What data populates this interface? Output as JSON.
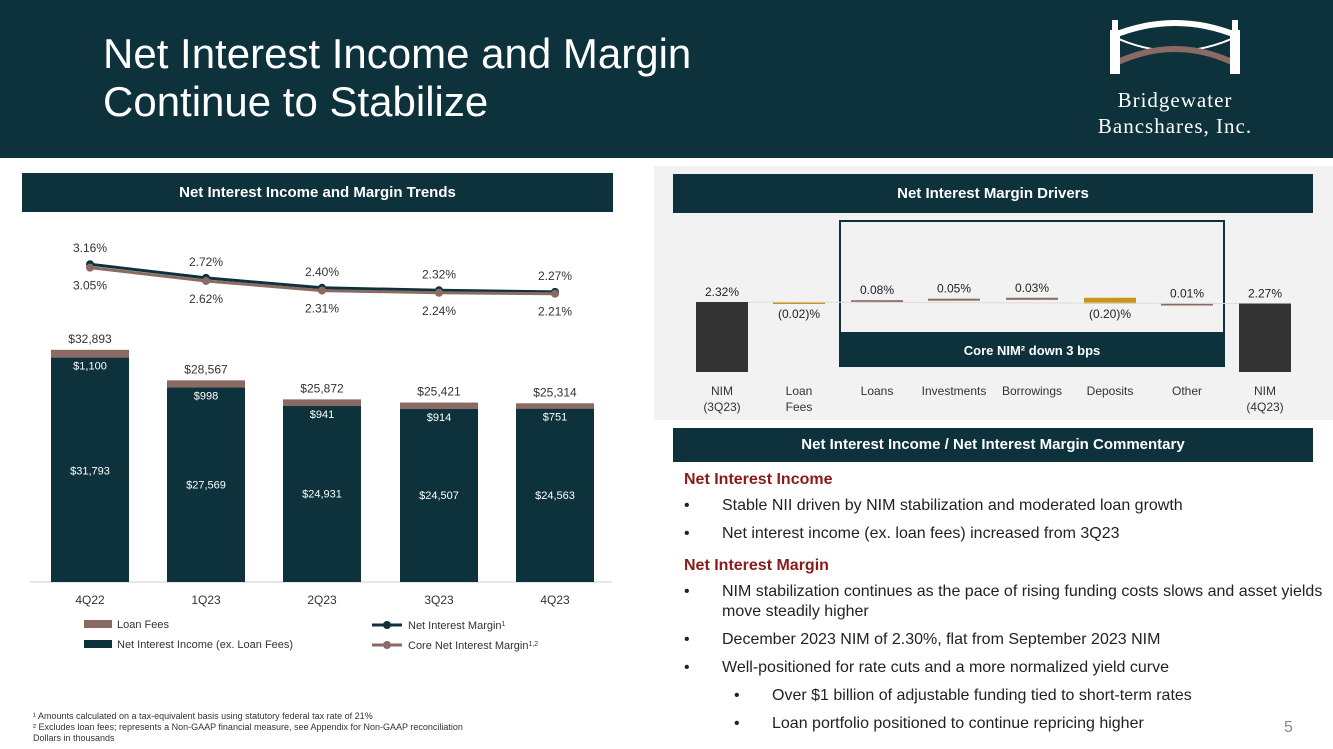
{
  "header": {
    "title_line1": "Net Interest Income and Margin",
    "title_line2": "Continue to Stabilize",
    "logo_line1": "Bridgewater",
    "logo_line2": "Bancshares, Inc."
  },
  "colors": {
    "navy": "#0d323b",
    "loan_fees": "#8a6a63",
    "gold": "#c8961a",
    "accent_red": "#8b1a1a"
  },
  "left_panel": {
    "title": "Net Interest Income and Margin Trends"
  },
  "right_panel": {
    "title": "Net Interest Margin Drivers"
  },
  "commentary": {
    "title": "Net Interest Income / Net Interest Margin Commentary",
    "nii_heading": "Net Interest Income",
    "nii_items": [
      "Stable NII driven by NIM stabilization and moderated loan growth",
      "Net interest income (ex. loan fees) increased from 3Q23"
    ],
    "nim_heading": "Net Interest Margin",
    "nim_items": [
      "NIM stabilization continues as the pace of rising funding costs slows and asset yields move steadily higher",
      "December 2023 NIM of 2.30%, flat from September 2023 NIM",
      "Well-positioned for rate cuts and a more normalized yield curve"
    ],
    "nim_subitems": [
      "Over $1 billion of adjustable funding tied to short-term rates",
      "Loan portfolio positioned to continue repricing higher"
    ],
    "bullet": "•"
  },
  "footnotes": {
    "note1": "¹ Amounts calculated on a tax-equivalent basis using statutory federal tax rate of 21%",
    "note2": "² Excludes loan fees; represents a Non-GAAP financial measure, see Appendix for Non-GAAP reconciliation",
    "note3": "Dollars in thousands"
  },
  "page_number": "5",
  "chart_data": [
    {
      "type": "bar",
      "stacked": true,
      "title": "Net Interest Income and Margin Trends",
      "categories": [
        "4Q22",
        "1Q23",
        "2Q23",
        "3Q23",
        "4Q23"
      ],
      "series": [
        {
          "name": "Net Interest Income (ex. Loan Fees)",
          "values": [
            31793,
            27569,
            24931,
            24507,
            24563
          ],
          "labels": [
            "$31,793",
            "$27,569",
            "$24,931",
            "$24,507",
            "$24,563"
          ]
        },
        {
          "name": "Loan Fees",
          "values": [
            1100,
            998,
            941,
            914,
            751
          ],
          "labels": [
            "$1,100",
            "$998",
            "$941",
            "$914",
            "$751"
          ]
        }
      ],
      "totals": [
        32893,
        28567,
        25872,
        25421,
        25314
      ],
      "total_labels": [
        "$32,893",
        "$28,567",
        "$25,872",
        "$25,421",
        "$25,314"
      ],
      "lines": [
        {
          "name": "Net Interest Margin",
          "sup": "1",
          "values": [
            3.16,
            2.72,
            2.4,
            2.32,
            2.27
          ],
          "labels": [
            "3.16%",
            "2.72%",
            "2.40%",
            "2.32%",
            "2.27%"
          ]
        },
        {
          "name": "Core Net Interest Margin",
          "sup": "1,2",
          "values": [
            3.05,
            2.62,
            2.31,
            2.24,
            2.21
          ],
          "labels": [
            "3.05%",
            "2.62%",
            "2.31%",
            "2.24%",
            "2.21%"
          ]
        }
      ],
      "legend": [
        "Loan Fees",
        "Net Interest Margin",
        "Net Interest Income (ex. Loan Fees)",
        "Core Net Interest Margin"
      ],
      "legend_position": "bottom"
    },
    {
      "type": "waterfall",
      "title": "Net Interest Margin Drivers",
      "categories": [
        "NIM (3Q23)",
        "Loan Fees",
        "Loans",
        "Investments",
        "Borrowings",
        "Deposits",
        "Other",
        "NIM (4Q23)"
      ],
      "category_lines": [
        [
          "NIM",
          "(3Q23)"
        ],
        [
          "Loan",
          "Fees"
        ],
        [
          "Loans"
        ],
        [
          "Investments"
        ],
        [
          "Borrowings"
        ],
        [
          "Deposits"
        ],
        [
          "Other"
        ],
        [
          "NIM",
          "(4Q23)"
        ]
      ],
      "start": 2.32,
      "steps": [
        -0.02,
        0.08,
        0.05,
        0.03,
        -0.2,
        0.01
      ],
      "end": 2.27,
      "labels": [
        "2.32%",
        "(0.02)%",
        "0.08%",
        "0.05%",
        "0.03%",
        "(0.20)%",
        "0.01%",
        "2.27%"
      ],
      "annotation": "Core NIM² down 3 bps"
    }
  ]
}
